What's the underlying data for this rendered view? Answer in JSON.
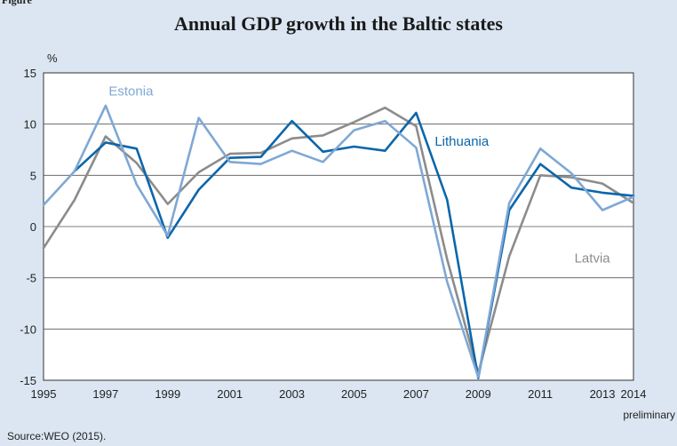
{
  "figure_label": "Figure",
  "source": "Source:WEO (2015).",
  "chart_data": {
    "type": "line",
    "title": "Annual GDP growth in the Baltic states",
    "ylabel": "%",
    "xlabel": "",
    "ylim": [
      -15,
      15
    ],
    "yticks": [
      -15,
      -10,
      -5,
      0,
      5,
      10,
      15
    ],
    "xlim": [
      1995,
      2014
    ],
    "xtick_labels": [
      "1995",
      "1997",
      "1999",
      "2001",
      "2003",
      "2005",
      "2007",
      "2009",
      "2011",
      "2013",
      "2014"
    ],
    "xtick_values": [
      1995,
      1997,
      1999,
      2001,
      2003,
      2005,
      2007,
      2009,
      2011,
      2013,
      2014
    ],
    "x_note": "preliminary",
    "grid": "horizontal",
    "x": [
      1995,
      1996,
      1997,
      1998,
      1999,
      2000,
      2001,
      2002,
      2003,
      2004,
      2005,
      2006,
      2007,
      2008,
      2009,
      2010,
      2011,
      2012,
      2013,
      2014
    ],
    "series": [
      {
        "name": "Estonia",
        "color": "#7fa8d4",
        "label_x": 1997.1,
        "label_y": 12.8,
        "values": [
          2.1,
          5.4,
          11.8,
          4.1,
          -0.9,
          10.6,
          6.3,
          6.1,
          7.4,
          6.3,
          9.4,
          10.3,
          7.7,
          -5.4,
          -14.7,
          2.3,
          7.6,
          5.2,
          1.6,
          2.9
        ]
      },
      {
        "name": "Lithuania",
        "color": "#0b66aa",
        "label_x": 2007.6,
        "label_y": 7.9,
        "values": [
          null,
          5.4,
          8.2,
          7.6,
          -1.1,
          3.6,
          6.7,
          6.8,
          10.3,
          7.3,
          7.8,
          7.4,
          11.1,
          2.6,
          -14.8,
          1.6,
          6.1,
          3.8,
          3.3,
          3.0
        ]
      },
      {
        "name": "Latvia",
        "color": "#8c8c8c",
        "label_x": 2012.1,
        "label_y": -3.5,
        "values": [
          -2.1,
          2.6,
          8.8,
          6.2,
          2.2,
          5.3,
          7.1,
          7.2,
          8.6,
          8.9,
          10.2,
          11.6,
          9.8,
          -3.2,
          -14.3,
          -2.9,
          5.0,
          4.8,
          4.2,
          2.3
        ]
      }
    ]
  }
}
